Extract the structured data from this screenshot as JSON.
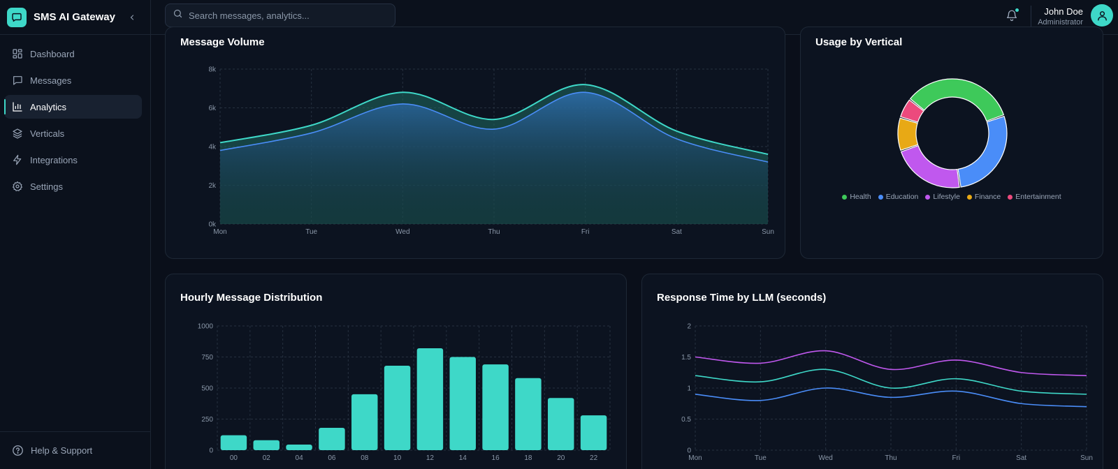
{
  "app": {
    "title": "SMS AI Gateway"
  },
  "nav": {
    "items": [
      {
        "id": "dashboard",
        "label": "Dashboard",
        "icon": "grid-icon",
        "active": false
      },
      {
        "id": "messages",
        "label": "Messages",
        "icon": "message-icon",
        "active": false
      },
      {
        "id": "analytics",
        "label": "Analytics",
        "icon": "bar-chart-icon",
        "active": true
      },
      {
        "id": "verticals",
        "label": "Verticals",
        "icon": "layers-icon",
        "active": false
      },
      {
        "id": "integrations",
        "label": "Integrations",
        "icon": "lightning-icon",
        "active": false
      },
      {
        "id": "settings",
        "label": "Settings",
        "icon": "gear-icon",
        "active": false
      }
    ],
    "help_label": "Help & Support"
  },
  "header": {
    "search_placeholder": "Search messages, analytics...",
    "user_name": "John Doe",
    "user_role": "Administrator"
  },
  "colors": {
    "accent": "#3ed8c8",
    "blue": "#4a8df8",
    "purple": "#c058ee",
    "green": "#3ec95a",
    "amber": "#e8a915",
    "pink": "#ec4a7d"
  },
  "cards": {
    "volume_title": "Message Volume",
    "vertical_title": "Usage by Vertical",
    "hourly_title": "Hourly Message Distribution",
    "response_title": "Response Time by LLM (seconds)"
  },
  "chart_data": [
    {
      "id": "message-volume",
      "type": "area",
      "categories": [
        "Mon",
        "Tue",
        "Wed",
        "Thu",
        "Fri",
        "Sat",
        "Sun"
      ],
      "series": [
        {
          "values": [
            4200,
            5100,
            6800,
            5400,
            7200,
            4800,
            3600
          ]
        },
        {
          "values": [
            3800,
            4700,
            6200,
            4900,
            6800,
            4400,
            3200
          ]
        }
      ],
      "yticks": [
        "0k",
        "2k",
        "4k",
        "6k",
        "8k"
      ],
      "ylim": [
        0,
        8000
      ],
      "grid": true
    },
    {
      "id": "usage-by-vertical",
      "type": "pie",
      "labels": [
        "Health",
        "Education",
        "Lifestyle",
        "Finance",
        "Entertainment"
      ],
      "values": [
        34,
        28,
        22,
        10,
        6
      ],
      "legend": "bottom"
    },
    {
      "id": "hourly-distribution",
      "type": "bar",
      "categories": [
        "00",
        "02",
        "04",
        "06",
        "08",
        "10",
        "12",
        "14",
        "16",
        "18",
        "20",
        "22"
      ],
      "values": [
        120,
        80,
        45,
        180,
        450,
        680,
        820,
        750,
        690,
        580,
        420,
        280
      ],
      "yticks": [
        "0",
        "250",
        "500",
        "750",
        "1000"
      ],
      "ylim": [
        0,
        1000
      ],
      "grid": true
    },
    {
      "id": "response-time",
      "type": "line",
      "categories": [
        "Mon",
        "Tue",
        "Wed",
        "Thu",
        "Fri",
        "Sat",
        "Sun"
      ],
      "series": [
        {
          "values": [
            1.5,
            1.4,
            1.6,
            1.3,
            1.45,
            1.25,
            1.2
          ]
        },
        {
          "values": [
            1.2,
            1.1,
            1.3,
            1.0,
            1.15,
            0.95,
            0.9
          ]
        },
        {
          "values": [
            0.9,
            0.8,
            1.0,
            0.85,
            0.95,
            0.75,
            0.7
          ]
        }
      ],
      "yticks": [
        "0",
        "0.5",
        "1",
        "1.5",
        "2"
      ],
      "ylim": [
        0,
        2
      ],
      "grid": true
    }
  ]
}
